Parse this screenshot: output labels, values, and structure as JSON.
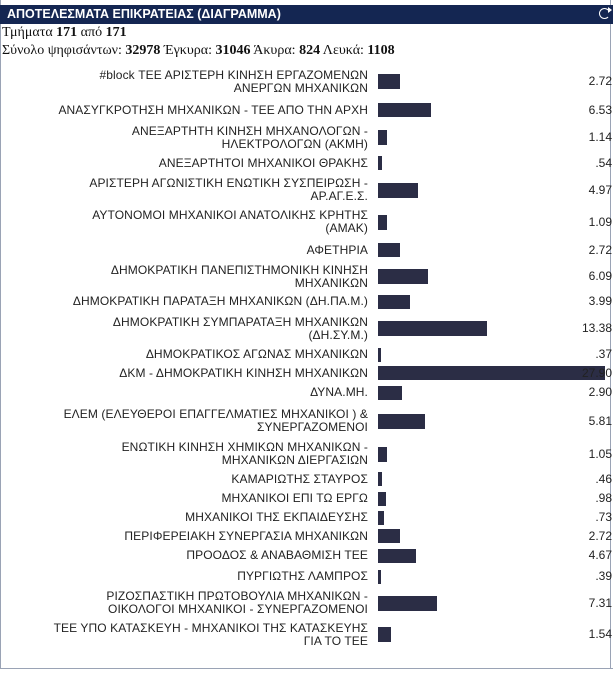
{
  "header": {
    "title": "ΑΠΟΤΕΛΕΣΜΑΤΑ ΕΠΙΚΡΑΤΕΙΑΣ (ΔΙΑΓΡΑΜΜΑ)",
    "refresh_icon": "refresh-icon"
  },
  "stats": {
    "sections_label": "Τμήματα",
    "sections_counted": "171",
    "sections_of": "από",
    "sections_total": "171",
    "voters_label": "Σύνολο ψηφισάντων:",
    "voters": "32978",
    "valid_label": "Έγκυρα:",
    "valid": "31046",
    "invalid_label": "Άκυρα:",
    "invalid": "824",
    "blank_label": "Λευκά:",
    "blank": "1108"
  },
  "colors": {
    "bar": "#2b2d45",
    "title_bg": "#142652"
  },
  "chart_data": {
    "type": "bar",
    "orientation": "horizontal",
    "title": "ΑΠΟΤΕΛΕΣΜΑΤΑ ΕΠΙΚΡΑΤΕΙΑΣ (ΔΙΑΓΡΑΜΜΑ)",
    "xlim": [
      0,
      27.9
    ],
    "categories": [
      [
        "#block ΤΕΕ ΑΡΙΣΤΕΡΗ ΚΙΝΗΣΗ ΕΡΓΑΖΟΜΕΝΩΝ",
        "ΑΝΕΡΓΩΝ ΜΗΧΑΝΙΚΩΝ"
      ],
      [
        "ΑΝΑΣΥΓΚΡΟΤΗΣΗ ΜΗΧΑΝΙΚΩΝ - ΤΕΕ ΑΠΟ ΤΗΝ ΑΡΧΗ"
      ],
      [
        "ΑΝΕΞΑΡΤΗΤΗ ΚΙΝΗΣΗ ΜΗΧΑΝΟΛΟΓΩΝ -",
        "ΗΛΕΚΤΡΟΛΟΓΩΝ (ΑΚΜΗ)"
      ],
      [
        "ΑΝΕΞΑΡΤΗΤΟΙ ΜΗΧΑΝΙΚΟΙ ΘΡΑΚΗΣ"
      ],
      [
        "ΑΡΙΣΤΕΡΗ ΑΓΩΝΙΣΤΙΚΗ ΕΝΩΤΙΚΗ ΣΥΣΠΕΙΡΩΣΗ -",
        "ΑΡ.ΑΓ.Ε.Σ."
      ],
      [
        "ΑΥΤΟΝΟΜΟΙ ΜΗΧΑΝΙΚΟΙ ΑΝΑΤΟΛΙΚΗΣ ΚΡΗΤΗΣ",
        "(ΑΜΑΚ)"
      ],
      [
        "ΑΦΕΤΗΡΙΑ"
      ],
      [
        "ΔΗΜΟΚΡΑΤΙΚΗ ΠΑΝΕΠΙΣΤΗΜΟΝΙΚΗ ΚΙΝΗΣΗ",
        "ΜΗΧΑΝΙΚΩΝ"
      ],
      [
        "ΔΗΜΟΚΡΑΤΙΚΗ ΠΑΡΑΤΑΞΗ ΜΗΧΑΝΙΚΩΝ (ΔΗ.ΠΑ.Μ.)"
      ],
      [
        "ΔΗΜΟΚΡΑΤΙΚΗ ΣΥΜΠΑΡΑΤΑΞΗ ΜΗΧΑΝΙΚΩΝ",
        "(ΔΗ.ΣΥ.Μ.)"
      ],
      [
        "ΔΗΜΟΚΡΑΤΙΚΟΣ ΑΓΩΝΑΣ ΜΗΧΑΝΙΚΩΝ"
      ],
      [
        "ΔΚΜ - ΔΗΜΟΚΡΑΤΙΚΗ ΚΙΝΗΣΗ ΜΗΧΑΝΙΚΩΝ"
      ],
      [
        "ΔΥΝΑ.ΜΗ."
      ],
      [
        "ΕΛΕΜ (ΕΛΕΥΘΕΡΟΙ ΕΠΑΓΓΕΛΜΑΤΙΕΣ ΜΗΧΑΝΙΚΟΙ ) &",
        "ΣΥΝΕΡΓΑΖΟΜΕΝΟΙ"
      ],
      [
        "ΕΝΩΤΙΚΗ ΚΙΝΗΣΗ ΧΗΜΙΚΩΝ ΜΗΧΑΝΙΚΩΝ -",
        "ΜΗΧΑΝΙΚΩΝ ΔΙΕΡΓΑΣΙΩΝ"
      ],
      [
        "ΚΑΜΑΡΙΩΤΗΣ ΣΤΑΥΡΟΣ"
      ],
      [
        "ΜΗΧΑΝΙΚΟΙ ΕΠΙ ΤΩ ΕΡΓΩ"
      ],
      [
        "ΜΗΧΑΝΙΚΟΙ ΤΗΣ ΕΚΠΑΙΔΕΥΣΗΣ"
      ],
      [
        "ΠΕΡΙΦΕΡΕΙΑΚΗ ΣΥΝΕΡΓΑΣΙΑ ΜΗΧΑΝΙΚΩΝ"
      ],
      [
        "ΠΡΟΟΔΟΣ & ΑΝΑΒΑΘΜΙΣΗ ΤΕΕ"
      ],
      [
        "ΠΥΡΓΙΩΤΗΣ ΛΑΜΠΡΟΣ"
      ],
      [
        "ΡΙΖΟΣΠΑΣΤΙΚΗ ΠΡΩΤΟΒΟΥΛΙΑ ΜΗΧΑΝΙΚΩΝ -",
        "ΟΙΚΟΛΟΓΟΙ ΜΗΧΑΝΙΚΟΙ - ΣΥΝΕΡΓΑΖΟΜΕΝΟΙ"
      ],
      [
        "ΤΕΕ ΥΠΟ ΚΑΤΑΣΚΕΥΗ - ΜΗΧΑΝΙΚΟΙ ΤΗΣ ΚΑΤΑΣΚΕΥΗΣ",
        "ΓΙΑ ΤΟ ΤΕΕ"
      ]
    ],
    "values": [
      2.72,
      6.53,
      1.14,
      0.54,
      4.97,
      1.09,
      2.72,
      6.09,
      3.99,
      13.38,
      0.37,
      27.9,
      2.9,
      5.81,
      1.05,
      0.46,
      0.98,
      0.73,
      2.72,
      4.67,
      0.39,
      7.31,
      1.54
    ],
    "value_labels": [
      "2.72",
      "6.53",
      "1.14",
      ".54",
      "4.97",
      "1.09",
      "2.72",
      "6.09",
      "3.99",
      "13.38",
      ".37",
      "27.90",
      "2.90",
      "5.81",
      "1.05",
      ".46",
      ".98",
      ".73",
      "2.72",
      "4.67",
      ".39",
      "7.31",
      "1.54"
    ]
  }
}
